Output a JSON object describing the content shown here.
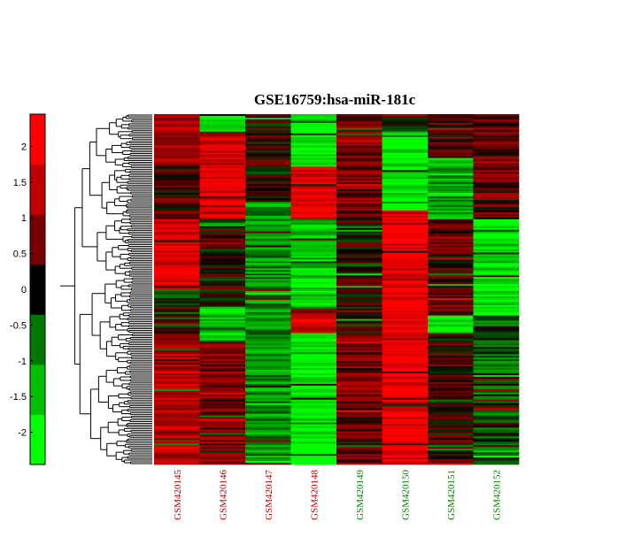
{
  "chart_data": {
    "type": "heatmap",
    "title": "GSE16759:hsa-miR-181c",
    "colorbar": {
      "ticks": [
        2,
        1.5,
        1,
        0.5,
        0,
        -0.5,
        -1,
        -1.5,
        -2
      ],
      "tick_labels": [
        "2",
        "1.5",
        "1",
        "0.5",
        "0",
        "-0.5",
        "-1",
        "-1.5",
        "-2"
      ],
      "range": [
        -2.45,
        2.45
      ],
      "colors": [
        "#00ff00",
        "#00c000",
        "#007800",
        "#000000",
        "#780000",
        "#c00000",
        "#ff0000"
      ]
    },
    "samples": [
      {
        "label": "GSM420145",
        "color": "#c00000"
      },
      {
        "label": "GSM420146",
        "color": "#c00000"
      },
      {
        "label": "GSM420147",
        "color": "#c00000"
      },
      {
        "label": "GSM420148",
        "color": "#c00000"
      },
      {
        "label": "GSM420149",
        "color": "#008000"
      },
      {
        "label": "GSM420150",
        "color": "#008000"
      },
      {
        "label": "GSM420151",
        "color": "#008000"
      },
      {
        "label": "GSM420152",
        "color": "#008000"
      }
    ],
    "row_count": 200,
    "column_patterns": [
      {
        "sample": "GSM420145",
        "segments": [
          {
            "rows": [
              0,
              30
            ],
            "level": 1.2
          },
          {
            "rows": [
              30,
              60
            ],
            "level": 0.3
          },
          {
            "rows": [
              60,
              100
            ],
            "level": 1.8
          },
          {
            "rows": [
              100,
              125
            ],
            "level": -0.2
          },
          {
            "rows": [
              125,
              200
            ],
            "level": 1.3
          }
        ]
      },
      {
        "sample": "GSM420146",
        "segments": [
          {
            "rows": [
              0,
              10
            ],
            "level": -2
          },
          {
            "rows": [
              10,
              60
            ],
            "level": 1.6
          },
          {
            "rows": [
              60,
              110
            ],
            "level": 0.2
          },
          {
            "rows": [
              110,
              130
            ],
            "level": -1.5
          },
          {
            "rows": [
              130,
              200
            ],
            "level": 0.8
          }
        ]
      },
      {
        "sample": "GSM420147",
        "segments": [
          {
            "rows": [
              0,
              50
            ],
            "level": 0.2
          },
          {
            "rows": [
              50,
              200
            ],
            "level": -1.0
          }
        ]
      },
      {
        "sample": "GSM420148",
        "segments": [
          {
            "rows": [
              0,
              30
            ],
            "level": -2
          },
          {
            "rows": [
              30,
              60
            ],
            "level": 1.8
          },
          {
            "rows": [
              60,
              110
            ],
            "level": -1.6
          },
          {
            "rows": [
              110,
              125
            ],
            "level": 1.5
          },
          {
            "rows": [
              125,
              200
            ],
            "level": -2
          }
        ]
      },
      {
        "sample": "GSM420149",
        "segments": [
          {
            "rows": [
              0,
              60
            ],
            "level": 0.8
          },
          {
            "rows": [
              60,
              125
            ],
            "level": 0.1
          },
          {
            "rows": [
              125,
              200
            ],
            "level": 0.7
          }
        ]
      },
      {
        "sample": "GSM420150",
        "segments": [
          {
            "rows": [
              0,
              10
            ],
            "level": 0.2
          },
          {
            "rows": [
              10,
              55
            ],
            "level": -2
          },
          {
            "rows": [
              55,
              200
            ],
            "level": 2
          }
        ]
      },
      {
        "sample": "GSM420151",
        "segments": [
          {
            "rows": [
              0,
              25
            ],
            "level": 0.5
          },
          {
            "rows": [
              25,
              60
            ],
            "level": -1.2
          },
          {
            "rows": [
              60,
              115
            ],
            "level": 0.4
          },
          {
            "rows": [
              115,
              125
            ],
            "level": -2
          },
          {
            "rows": [
              125,
              200
            ],
            "level": 0.3
          }
        ]
      },
      {
        "sample": "GSM420152",
        "segments": [
          {
            "rows": [
              0,
              60
            ],
            "level": 0.6
          },
          {
            "rows": [
              60,
              115
            ],
            "level": -1.9
          },
          {
            "rows": [
              115,
              200
            ],
            "level": -0.5
          }
        ]
      }
    ]
  }
}
